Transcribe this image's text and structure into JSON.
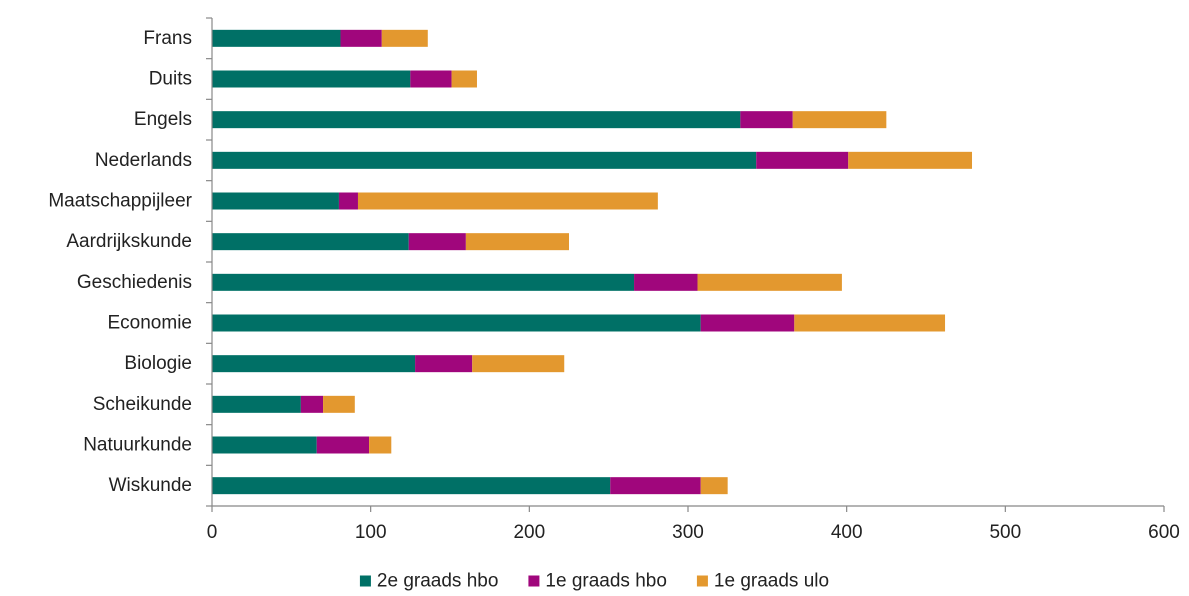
{
  "chart_data": {
    "type": "bar",
    "orientation": "horizontal",
    "stacked": true,
    "categories": [
      "Wiskunde",
      "Natuurkunde",
      "Scheikunde",
      "Biologie",
      "Economie",
      "Geschiedenis",
      "Aardrijkskunde",
      "Maatschappijleer",
      "Nederlands",
      "Engels",
      "Duits",
      "Frans"
    ],
    "series": [
      {
        "name": "2e graads hbo",
        "color": "#007066",
        "values": [
          251,
          66,
          56,
          128,
          308,
          266,
          124,
          80,
          343,
          333,
          125,
          81
        ]
      },
      {
        "name": "1e graads hbo",
        "color": "#A0067C",
        "values": [
          57,
          33,
          14,
          36,
          59,
          40,
          36,
          12,
          58,
          33,
          26,
          26
        ]
      },
      {
        "name": "1e graads ulo",
        "color": "#E3982F",
        "values": [
          17,
          14,
          20,
          58,
          95,
          91,
          65,
          189,
          78,
          59,
          16,
          29
        ]
      }
    ],
    "x_ticks": [
      "0",
      "100",
      "200",
      "300",
      "400",
      "500",
      "600"
    ],
    "xlim": [
      0,
      600
    ],
    "grid": false,
    "legend_position": "bottom"
  }
}
